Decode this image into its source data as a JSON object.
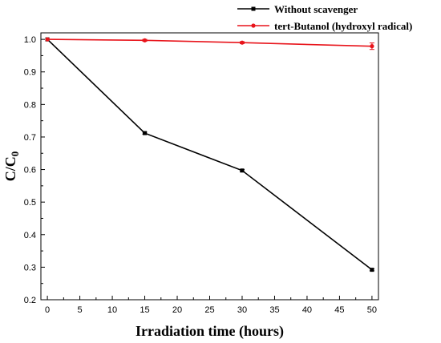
{
  "chart_data": {
    "type": "line",
    "xlabel": "Irradiation time (hours)",
    "ylabel_main": "C/C",
    "ylabel_sub": "0",
    "xlim": [
      -1,
      51
    ],
    "ylim": [
      0.2,
      1.02
    ],
    "x_ticks": [
      0,
      5,
      10,
      15,
      20,
      25,
      30,
      35,
      40,
      45,
      50
    ],
    "y_ticks": [
      0.2,
      0.3,
      0.4,
      0.5,
      0.6,
      0.7,
      0.8,
      0.9,
      1.0
    ],
    "y_tick_labels": [
      "0.2",
      "0.3",
      "0.4",
      "0.5",
      "0.6",
      "0.7",
      "0.8",
      "0.9",
      "1.0"
    ],
    "grid": false,
    "legend_position": "top-right, outside plot area",
    "series": [
      {
        "name": "Without scavenger",
        "color": "#000000",
        "marker": "square",
        "x": [
          0,
          15,
          30,
          50
        ],
        "y": [
          1.0,
          0.712,
          0.597,
          0.292
        ],
        "error": [
          0.0,
          0.003,
          0.003,
          0.003
        ]
      },
      {
        "name": "tert-Butanol (hydroxyl radical)",
        "color": "#e8141b",
        "marker": "circle",
        "x": [
          0,
          15,
          30,
          50
        ],
        "y": [
          1.0,
          0.997,
          0.99,
          0.979
        ],
        "error": [
          0.0,
          0.003,
          0.003,
          0.01
        ]
      }
    ]
  }
}
